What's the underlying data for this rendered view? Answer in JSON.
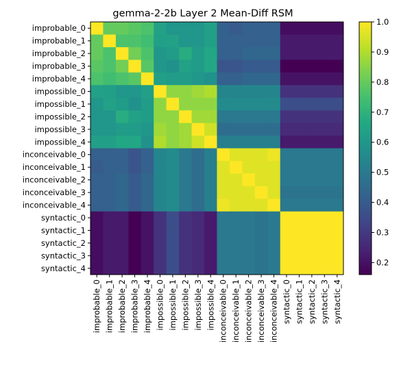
{
  "chart_data": {
    "type": "heatmap",
    "title": "gemma-2-2b Layer 2 Mean-Diff RSM",
    "labels": [
      "improbable_0",
      "improbable_1",
      "improbable_2",
      "improbable_3",
      "improbable_4",
      "impossible_0",
      "impossible_1",
      "impossible_2",
      "impossible_3",
      "impossible_4",
      "inconceivable_0",
      "inconceivable_1",
      "inconceivable_2",
      "inconceivable_3",
      "inconceivable_4",
      "syntactic_0",
      "syntactic_1",
      "syntactic_2",
      "syntactic_3",
      "syntactic_4"
    ],
    "colorbar": {
      "min": 0.16,
      "max": 1.0,
      "ticks": [
        0.2,
        0.3,
        0.4,
        0.5,
        0.6,
        0.7,
        0.8,
        0.9,
        1.0
      ]
    },
    "colormap": "viridis",
    "values": [
      [
        1.0,
        0.8,
        0.8,
        0.78,
        0.76,
        0.64,
        0.6,
        0.6,
        0.6,
        0.63,
        0.42,
        0.4,
        0.42,
        0.42,
        0.42,
        0.19,
        0.19,
        0.19,
        0.19,
        0.19
      ],
      [
        0.8,
        1.0,
        0.76,
        0.76,
        0.74,
        0.63,
        0.64,
        0.6,
        0.6,
        0.63,
        0.42,
        0.42,
        0.42,
        0.42,
        0.42,
        0.22,
        0.22,
        0.22,
        0.22,
        0.22
      ],
      [
        0.8,
        0.76,
        1.0,
        0.82,
        0.76,
        0.6,
        0.62,
        0.68,
        0.62,
        0.66,
        0.42,
        0.42,
        0.44,
        0.44,
        0.44,
        0.22,
        0.22,
        0.22,
        0.22,
        0.22
      ],
      [
        0.78,
        0.76,
        0.82,
        1.0,
        0.78,
        0.6,
        0.58,
        0.64,
        0.62,
        0.66,
        0.38,
        0.38,
        0.4,
        0.4,
        0.4,
        0.16,
        0.16,
        0.16,
        0.16,
        0.16
      ],
      [
        0.76,
        0.74,
        0.76,
        0.78,
        1.0,
        0.63,
        0.62,
        0.62,
        0.6,
        0.58,
        0.42,
        0.42,
        0.44,
        0.44,
        0.44,
        0.2,
        0.2,
        0.2,
        0.2,
        0.2
      ],
      [
        0.64,
        0.63,
        0.6,
        0.6,
        0.63,
        1.0,
        0.86,
        0.86,
        0.88,
        0.9,
        0.54,
        0.54,
        0.54,
        0.54,
        0.54,
        0.28,
        0.28,
        0.28,
        0.28,
        0.28
      ],
      [
        0.6,
        0.64,
        0.62,
        0.58,
        0.62,
        0.86,
        1.0,
        0.86,
        0.86,
        0.86,
        0.56,
        0.56,
        0.56,
        0.56,
        0.56,
        0.36,
        0.36,
        0.36,
        0.36,
        0.36
      ],
      [
        0.6,
        0.6,
        0.68,
        0.64,
        0.62,
        0.86,
        0.86,
        1.0,
        0.88,
        0.88,
        0.5,
        0.5,
        0.5,
        0.5,
        0.5,
        0.28,
        0.28,
        0.28,
        0.28,
        0.28
      ],
      [
        0.6,
        0.6,
        0.62,
        0.62,
        0.6,
        0.88,
        0.86,
        0.88,
        1.0,
        0.94,
        0.46,
        0.46,
        0.46,
        0.46,
        0.46,
        0.26,
        0.26,
        0.26,
        0.26,
        0.26
      ],
      [
        0.63,
        0.63,
        0.66,
        0.66,
        0.58,
        0.9,
        0.86,
        0.88,
        0.94,
        1.0,
        0.52,
        0.52,
        0.52,
        0.52,
        0.52,
        0.22,
        0.22,
        0.22,
        0.22,
        0.22
      ],
      [
        0.42,
        0.42,
        0.42,
        0.38,
        0.42,
        0.54,
        0.56,
        0.5,
        0.46,
        0.52,
        1.0,
        0.96,
        0.96,
        0.96,
        0.98,
        0.5,
        0.5,
        0.5,
        0.5,
        0.5
      ],
      [
        0.4,
        0.42,
        0.42,
        0.38,
        0.42,
        0.54,
        0.56,
        0.5,
        0.46,
        0.52,
        0.96,
        1.0,
        0.96,
        0.96,
        0.96,
        0.5,
        0.5,
        0.5,
        0.5,
        0.5
      ],
      [
        0.42,
        0.42,
        0.44,
        0.4,
        0.44,
        0.54,
        0.56,
        0.5,
        0.46,
        0.52,
        0.96,
        0.96,
        1.0,
        0.96,
        0.96,
        0.5,
        0.5,
        0.5,
        0.5,
        0.5
      ],
      [
        0.42,
        0.42,
        0.44,
        0.4,
        0.44,
        0.54,
        0.56,
        0.5,
        0.46,
        0.52,
        0.96,
        0.96,
        0.96,
        1.0,
        0.96,
        0.48,
        0.48,
        0.48,
        0.48,
        0.48
      ],
      [
        0.42,
        0.42,
        0.44,
        0.4,
        0.44,
        0.54,
        0.56,
        0.5,
        0.46,
        0.52,
        0.98,
        0.96,
        0.96,
        0.96,
        1.0,
        0.5,
        0.5,
        0.5,
        0.5,
        0.5
      ],
      [
        0.19,
        0.22,
        0.22,
        0.16,
        0.2,
        0.28,
        0.36,
        0.28,
        0.26,
        0.22,
        0.5,
        0.5,
        0.5,
        0.48,
        0.5,
        1.0,
        1.0,
        1.0,
        1.0,
        1.0
      ],
      [
        0.19,
        0.22,
        0.22,
        0.16,
        0.2,
        0.28,
        0.36,
        0.28,
        0.26,
        0.22,
        0.5,
        0.5,
        0.5,
        0.48,
        0.5,
        1.0,
        1.0,
        1.0,
        1.0,
        1.0
      ],
      [
        0.19,
        0.22,
        0.22,
        0.16,
        0.2,
        0.28,
        0.36,
        0.28,
        0.26,
        0.22,
        0.5,
        0.5,
        0.5,
        0.48,
        0.5,
        1.0,
        1.0,
        1.0,
        1.0,
        1.0
      ],
      [
        0.19,
        0.22,
        0.22,
        0.16,
        0.2,
        0.28,
        0.36,
        0.28,
        0.26,
        0.22,
        0.5,
        0.5,
        0.5,
        0.48,
        0.5,
        1.0,
        1.0,
        1.0,
        1.0,
        1.0
      ],
      [
        0.19,
        0.22,
        0.22,
        0.16,
        0.2,
        0.28,
        0.36,
        0.28,
        0.26,
        0.22,
        0.5,
        0.5,
        0.5,
        0.48,
        0.5,
        1.0,
        1.0,
        1.0,
        1.0,
        1.0
      ]
    ]
  }
}
